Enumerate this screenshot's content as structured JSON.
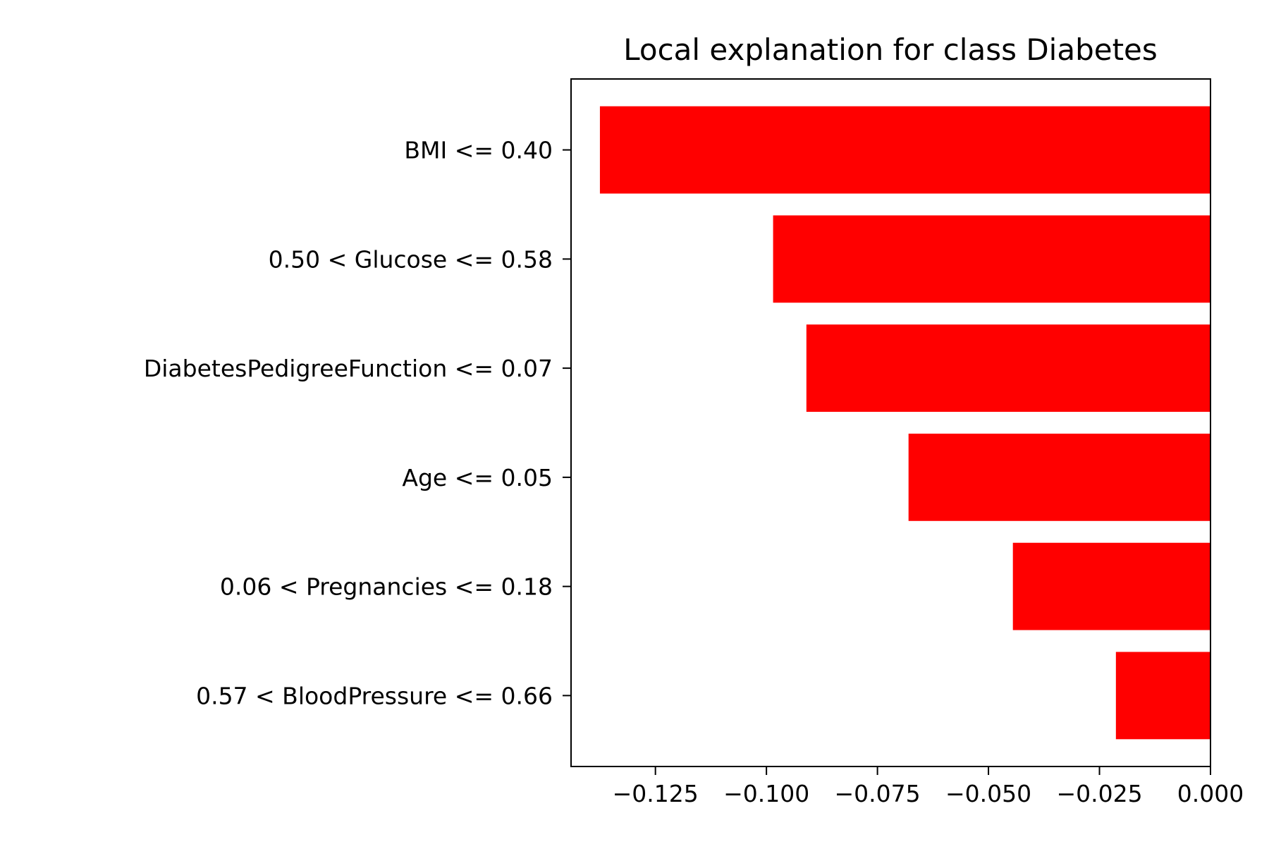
{
  "chart_data": {
    "type": "bar",
    "orientation": "horizontal",
    "title": "Local explanation for class Diabetes",
    "xlabel": "",
    "ylabel": "",
    "categories": [
      "BMI <= 0.40",
      "0.50 < Glucose <= 0.58",
      "DiabetesPedigreeFunction <= 0.07",
      "Age <= 0.05",
      "0.06 < Pregnancies <= 0.18",
      "0.57 < BloodPressure <= 0.66"
    ],
    "values": [
      -0.1375,
      -0.0985,
      -0.091,
      -0.068,
      -0.0445,
      -0.0213
    ],
    "xlim": [
      -0.144,
      0.0
    ],
    "xticks": [
      -0.125,
      -0.1,
      -0.075,
      -0.05,
      -0.025,
      0.0
    ],
    "xtick_labels": [
      "−0.125",
      "−0.100",
      "−0.075",
      "−0.050",
      "−0.025",
      "0.000"
    ],
    "bar_color": "#ff0000",
    "grid": false,
    "legend": "none"
  }
}
